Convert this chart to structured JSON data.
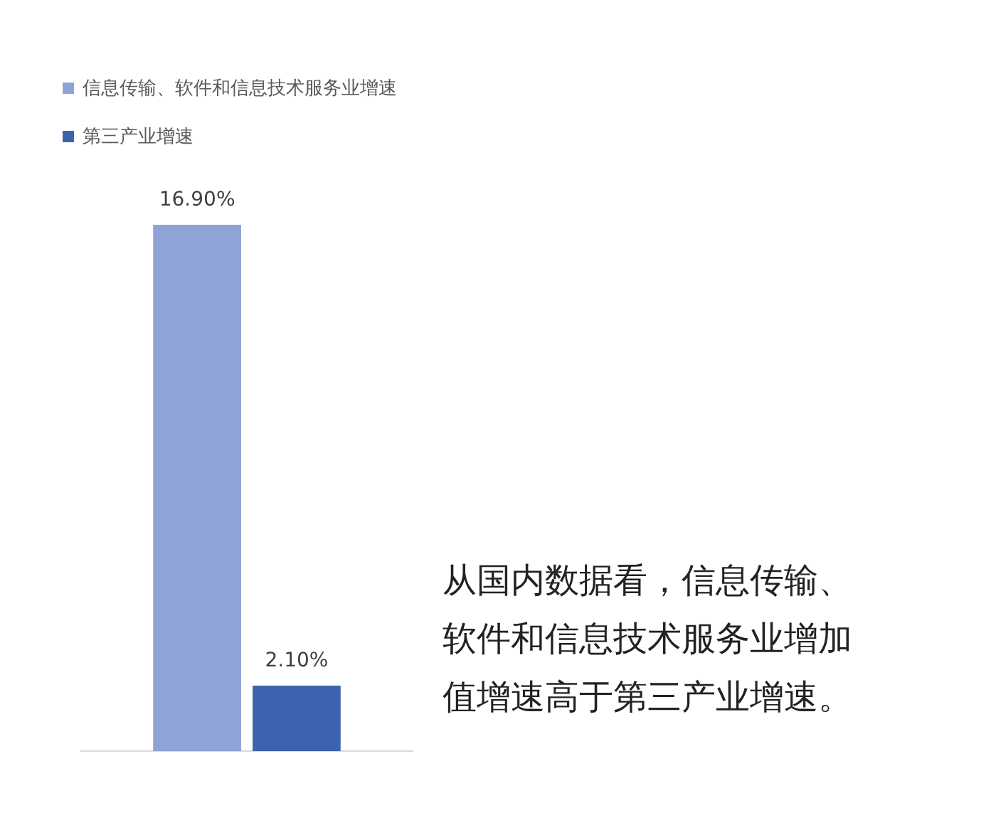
{
  "chart_data": {
    "type": "bar",
    "categories": [
      null
    ],
    "series": [
      {
        "name": "信息传输、软件和信息技术服务业增速",
        "color": "#8fa3d6",
        "values": [
          16.9
        ],
        "value_labels": [
          "16.90%"
        ]
      },
      {
        "name": "第三产业增速",
        "color": "#3c64ae",
        "values": [
          2.1
        ],
        "value_labels": [
          "2.10%"
        ]
      }
    ],
    "legend": "top left",
    "tick_labels": false,
    "grid": false,
    "annotations": [
      "从国内数据看，信息传输、软件和信息技术服务业增加值增速高于第三产业增速。"
    ]
  }
}
